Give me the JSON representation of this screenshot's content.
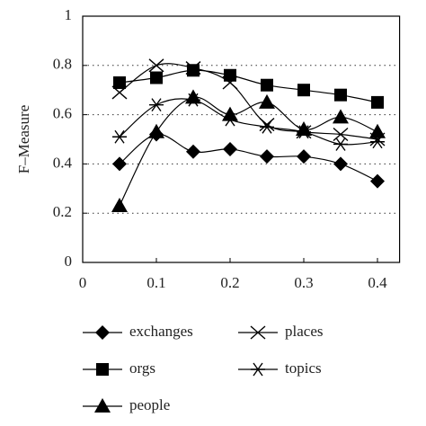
{
  "chart_data": {
    "type": "line",
    "y_label": "F–Measure",
    "x": [
      0.05,
      0.1,
      0.15,
      0.2,
      0.25,
      0.3,
      0.35,
      0.4
    ],
    "series": [
      {
        "name": "exchanges",
        "color": "#000000",
        "marker": "diamond",
        "values": [
          0.4,
          0.52,
          0.45,
          0.46,
          0.43,
          0.43,
          0.4,
          0.33
        ]
      },
      {
        "name": "orgs",
        "color": "#000000",
        "marker": "square",
        "values": [
          0.73,
          0.75,
          0.78,
          0.76,
          0.72,
          0.7,
          0.68,
          0.65
        ]
      },
      {
        "name": "people",
        "color": "#000000",
        "marker": "triangle",
        "values": [
          0.23,
          0.53,
          0.67,
          0.6,
          0.65,
          0.54,
          0.59,
          0.53
        ]
      },
      {
        "name": "places",
        "color": "#000000",
        "marker": "x",
        "values": [
          0.69,
          0.8,
          0.79,
          0.73,
          0.56,
          0.53,
          0.52,
          0.5
        ]
      },
      {
        "name": "topics",
        "color": "#000000",
        "marker": "asterisk",
        "values": [
          0.51,
          0.64,
          0.66,
          0.58,
          0.55,
          0.53,
          0.48,
          0.49
        ]
      }
    ],
    "xlim": [
      0,
      0.43
    ],
    "xticks": [
      0,
      0.1,
      0.2,
      0.3,
      0.4
    ],
    "ylim": [
      0,
      1
    ],
    "yticks": [
      0,
      0.2,
      0.4,
      0.6,
      0.8,
      1
    ],
    "grid": true
  }
}
